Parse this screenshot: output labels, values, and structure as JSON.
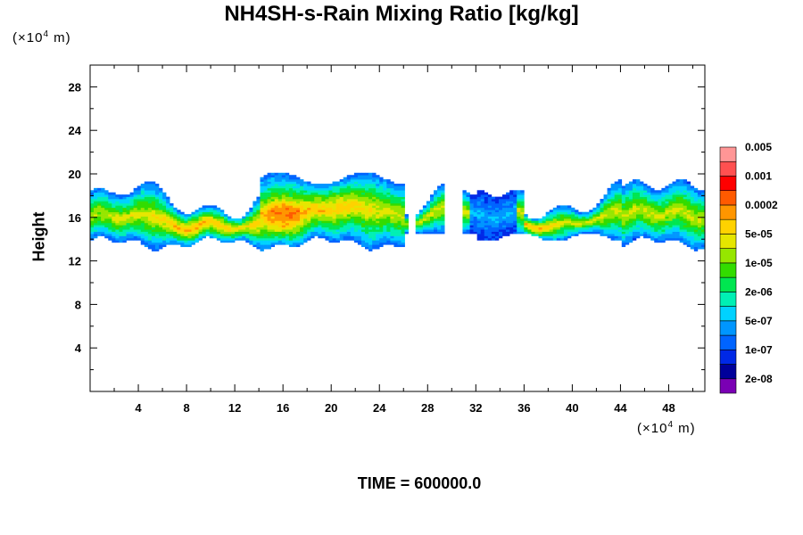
{
  "chart_data": {
    "type": "heatmap",
    "title": "NH4SH-s-Rain Mixing Ratio [kg/kg]",
    "ylabel": "Height",
    "x_unit_prefix": "(×10",
    "x_unit_exp": "4",
    "x_unit_suffix": " m)",
    "y_unit_prefix": "(×10",
    "y_unit_exp": "4",
    "y_unit_suffix": " m)",
    "xlim": [
      0,
      51
    ],
    "ylim": [
      0,
      30
    ],
    "x_ticks": [
      "4",
      "8",
      "12",
      "16",
      "20",
      "24",
      "28",
      "32",
      "36",
      "40",
      "44",
      "48"
    ],
    "y_ticks": [
      "4",
      "8",
      "12",
      "16",
      "20",
      "24",
      "28"
    ],
    "colorbar_labels": [
      "2e-08",
      "1e-07",
      "5e-07",
      "2e-06",
      "1e-05",
      "5e-05",
      "0.0002",
      "0.001",
      "0.005"
    ],
    "colorbar_colors": [
      "#7a00b4",
      "#00009a",
      "#0028e6",
      "#0064ff",
      "#0096ff",
      "#00d2ff",
      "#00f0b4",
      "#00e650",
      "#32dc00",
      "#96e600",
      "#e6e600",
      "#ffd200",
      "#ff9600",
      "#ff5a00",
      "#ff0000",
      "#ff5050",
      "#ff9696"
    ],
    "time_label": "TIME = 600000.0",
    "cloud_band": {
      "bottom_height": 13,
      "top_height": 20,
      "peak_value_location": [
        16,
        15.5
      ],
      "peak_value": "0.001"
    }
  }
}
